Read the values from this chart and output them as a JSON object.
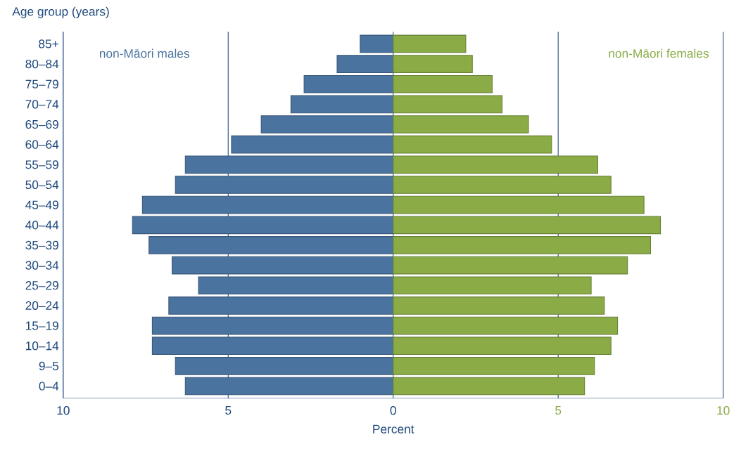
{
  "chart_data": {
    "type": "bar",
    "orientation": "horizontal",
    "xlabel": "Percent",
    "ylabel": "Age group (years)",
    "categories": [
      "85+",
      "80–84",
      "75–79",
      "70–74",
      "65–69",
      "60–64",
      "55–59",
      "50–54",
      "45–49",
      "40–44",
      "35–39",
      "30–34",
      "25–29",
      "20–24",
      "15–19",
      "10–14",
      "9–5",
      "0–4"
    ],
    "series": [
      {
        "name": "non-Māori males",
        "color": "#4a73a0",
        "values": [
          -1.0,
          -1.7,
          -2.7,
          -3.1,
          -4.0,
          -4.9,
          -6.3,
          -6.6,
          -7.6,
          -7.9,
          -7.4,
          -6.7,
          -5.9,
          -6.8,
          -7.3,
          -7.3,
          -6.6,
          -6.3
        ]
      },
      {
        "name": "non-Māori females",
        "color": "#8aab46",
        "values": [
          2.2,
          2.4,
          3.0,
          3.3,
          4.1,
          4.8,
          6.2,
          6.6,
          7.6,
          8.1,
          7.8,
          7.1,
          6.0,
          6.4,
          6.8,
          6.6,
          6.1,
          5.8
        ]
      }
    ],
    "xlim": [
      -10,
      10
    ],
    "xticks": [
      {
        "value": -10,
        "label": "10"
      },
      {
        "value": -5,
        "label": "5"
      },
      0,
      5,
      10
    ],
    "grid": "x",
    "legend": false,
    "stacked": true
  }
}
